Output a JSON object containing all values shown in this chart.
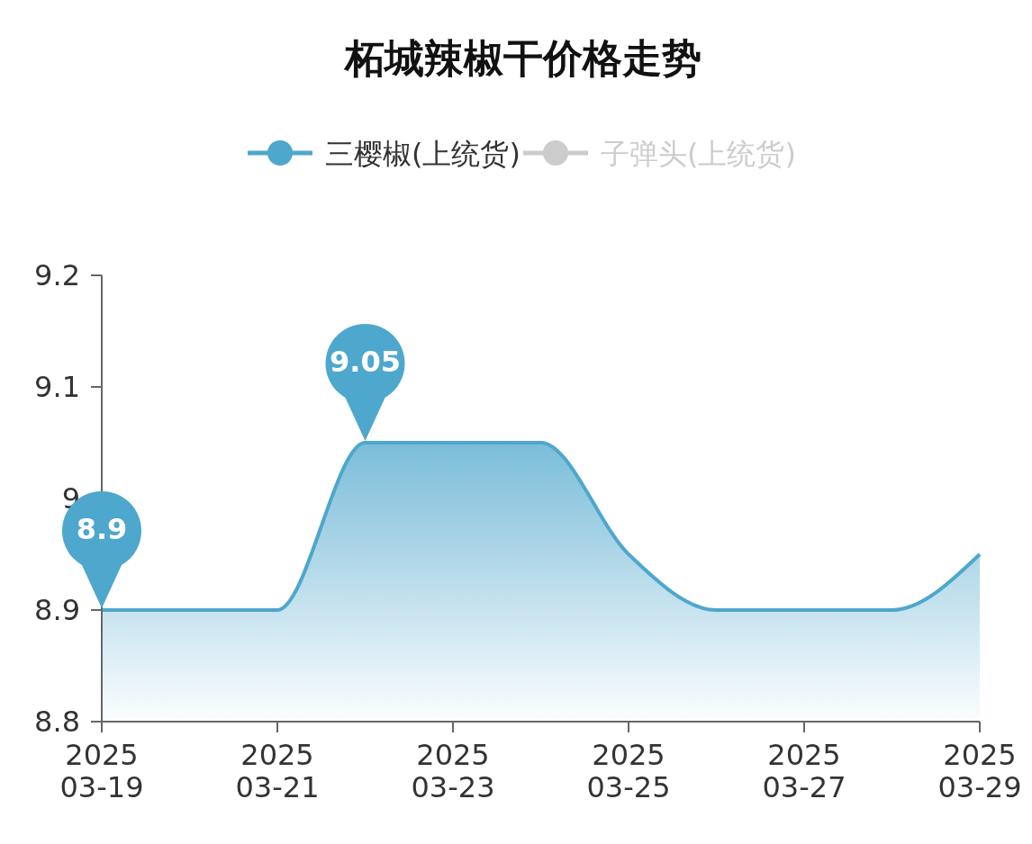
{
  "chart_data": {
    "type": "area",
    "title": "柘城辣椒干价格走势",
    "x": [
      "2025-03-19",
      "2025-03-20",
      "2025-03-21",
      "2025-03-22",
      "2025-03-23",
      "2025-03-24",
      "2025-03-25",
      "2025-03-26",
      "2025-03-27",
      "2025-03-28",
      "2025-03-29"
    ],
    "series": [
      {
        "name": "三樱椒(上统货)",
        "color": "#4ea7cc",
        "values": [
          8.9,
          8.9,
          8.9,
          9.05,
          9.05,
          9.05,
          8.95,
          8.9,
          8.9,
          8.9,
          8.95
        ]
      },
      {
        "name": "子弹头(上统货)",
        "color": "#cccccc",
        "values": [
          null,
          null,
          null,
          null,
          null,
          null,
          null,
          null,
          null,
          null,
          null
        ]
      }
    ],
    "xlim": [
      "2025-03-19",
      "2025-03-29"
    ],
    "xticks": [
      {
        "value": "2025-03-19",
        "label": "2025\n03-19"
      },
      {
        "value": "2025-03-21",
        "label": "2025\n03-21"
      },
      {
        "value": "2025-03-23",
        "label": "2025\n03-23"
      },
      {
        "value": "2025-03-25",
        "label": "2025\n03-25"
      },
      {
        "value": "2025-03-27",
        "label": "2025\n03-27"
      },
      {
        "value": "2025-03-29",
        "label": "2025\n03-29"
      }
    ],
    "ylim": [
      8.8,
      9.2
    ],
    "yticks": [
      8.8,
      8.9,
      9,
      9.1,
      9.2
    ],
    "annotations": [
      {
        "text": "8.9",
        "x": "2025-03-19",
        "y": 8.9
      },
      {
        "text": "9.05",
        "x": "2025-03-22",
        "y": 9.05
      }
    ],
    "legend": "top",
    "grid": false,
    "marker": "none"
  }
}
